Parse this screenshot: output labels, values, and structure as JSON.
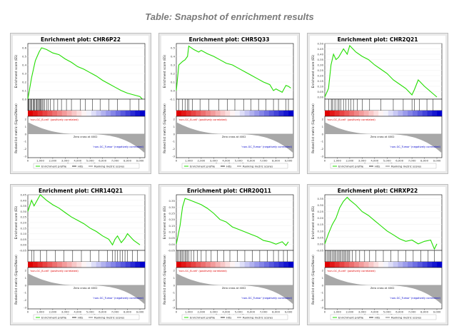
{
  "page_title": "Table: Snapshot of enrichment results",
  "colors": {
    "es_line": "#22dd00",
    "hit": "#000000",
    "metric": "#a8a8a8",
    "pos": "#e00000",
    "neg": "#0000cc",
    "frame": "#bdbdbd"
  },
  "shared": {
    "xlabel": "Rank in Ordered Dataset",
    "ylabel_es": "Enrichment score (ES)",
    "ylabel_metric": "Ranked list metric (Signal2Noise)",
    "x_ticks": [
      "0",
      "1,000",
      "2,000",
      "3,000",
      "4,000",
      "5,000",
      "6,000",
      "7,000",
      "8,000",
      "9,000"
    ],
    "metric_ticks": [
      "2",
      "1",
      "0",
      "-1",
      "-2",
      "-3"
    ],
    "pos_label": "'non-GC_B-cell' (positively correlated)",
    "neg_label": "'non-GC_Tumor' (negatively correlated)",
    "zero_cross": "Zero cross at 4002",
    "legend": [
      "Enrichment profile",
      "Hits",
      "Ranking metric scores"
    ]
  },
  "chart_data": [
    {
      "type": "line",
      "title": "Enrichment plot: CHR6P22",
      "xlim": [
        0,
        9400
      ],
      "ylim": [
        0,
        0.65
      ],
      "y_ticks": [
        "0.6",
        "0.5",
        "0.4",
        "0.3",
        "0.2",
        "0.1",
        "0.0"
      ],
      "y_tick_values": [
        0.6,
        0.5,
        0.4,
        0.3,
        0.2,
        0.1,
        0.0
      ],
      "x": [
        0,
        300,
        600,
        900,
        1100,
        1500,
        2000,
        2500,
        3000,
        3500,
        4000,
        4500,
        5000,
        5500,
        6000,
        6500,
        7000,
        7500,
        8000,
        8500,
        9000,
        9200
      ],
      "es": [
        0,
        0.25,
        0.45,
        0.55,
        0.6,
        0.58,
        0.54,
        0.52,
        0.47,
        0.43,
        0.38,
        0.35,
        0.31,
        0.27,
        0.22,
        0.18,
        0.14,
        0.1,
        0.07,
        0.05,
        0.03,
        0.0
      ],
      "hits": [
        50,
        100,
        180,
        260,
        330,
        420,
        500,
        560,
        650,
        720,
        800,
        860,
        940,
        1000,
        1080,
        1150,
        1250,
        1350,
        1500,
        1650,
        1800,
        2100,
        2400,
        2700,
        3100,
        3500,
        4200,
        4600,
        5200,
        5800,
        6500,
        7200,
        8200,
        8900
      ]
    },
    {
      "type": "line",
      "title": "Enrichment plot: CHR5Q33",
      "xlim": [
        0,
        9400
      ],
      "ylim": [
        -0.1,
        0.55
      ],
      "y_ticks": [
        "0.5",
        "0.4",
        "0.3",
        "0.2",
        "0.1",
        "0.0",
        "-0.1"
      ],
      "y_tick_values": [
        0.5,
        0.4,
        0.3,
        0.2,
        0.1,
        0.0,
        -0.1
      ],
      "x": [
        0,
        200,
        500,
        700,
        900,
        1000,
        1400,
        1800,
        2000,
        2500,
        3000,
        3500,
        4000,
        4500,
        5000,
        5500,
        6000,
        6500,
        7000,
        7500,
        7800,
        8000,
        8500,
        8800,
        9000,
        9200
      ],
      "es": [
        0,
        0.3,
        0.34,
        0.36,
        0.4,
        0.52,
        0.48,
        0.45,
        0.47,
        0.43,
        0.4,
        0.36,
        0.32,
        0.3,
        0.26,
        0.22,
        0.18,
        0.14,
        0.1,
        0.07,
        0.0,
        0.02,
        -0.02,
        0.06,
        0.05,
        0.03
      ],
      "hits": [
        200,
        500,
        700,
        900,
        1000,
        1300,
        1900,
        2600,
        3400,
        4100,
        4700,
        5400,
        6000,
        6600,
        7200,
        7800,
        8200,
        8800,
        9000
      ]
    },
    {
      "type": "line",
      "title": "Enrichment plot: CHR2Q21",
      "xlim": [
        0,
        9400
      ],
      "ylim": [
        -0.02,
        0.5
      ],
      "y_ticks": [
        "0.50",
        "0.45",
        "0.40",
        "0.35",
        "0.30",
        "0.25",
        "0.20",
        "0.15",
        "0.10",
        "0.05",
        "0.00"
      ],
      "y_tick_values": [
        0.5,
        0.45,
        0.4,
        0.35,
        0.3,
        0.25,
        0.2,
        0.15,
        0.1,
        0.05,
        0.0
      ],
      "x": [
        0,
        300,
        500,
        700,
        900,
        1100,
        1500,
        1800,
        2000,
        2500,
        3000,
        3500,
        4000,
        4500,
        5000,
        5500,
        6000,
        6500,
        7000,
        7200,
        7500,
        8000,
        8500,
        9000
      ],
      "es": [
        0,
        0.08,
        0.3,
        0.4,
        0.35,
        0.37,
        0.45,
        0.4,
        0.48,
        0.42,
        0.38,
        0.35,
        0.3,
        0.26,
        0.22,
        0.16,
        0.12,
        0.08,
        0.02,
        0.07,
        0.16,
        0.1,
        0.05,
        0.0
      ],
      "hits": [
        300,
        520,
        600,
        750,
        900,
        1050,
        1150,
        1300,
        1500,
        1700,
        1900,
        2100,
        2300,
        2600,
        3000,
        3600,
        4500,
        5500,
        6300,
        7000,
        7200,
        7600,
        8200,
        8700
      ]
    },
    {
      "type": "line",
      "title": "Enrichment plot: CHR14Q21",
      "xlim": [
        0,
        9400
      ],
      "ylim": [
        -0.05,
        0.45
      ],
      "y_ticks": [
        "0.45",
        "0.40",
        "0.35",
        "0.30",
        "0.25",
        "0.20",
        "0.15",
        "0.10",
        "0.05",
        "0.00",
        "-0.05"
      ],
      "y_tick_values": [
        0.45,
        0.4,
        0.35,
        0.3,
        0.25,
        0.2,
        0.15,
        0.1,
        0.05,
        0.0,
        -0.05
      ],
      "x": [
        0,
        300,
        500,
        1000,
        1500,
        2000,
        2500,
        3000,
        3500,
        4000,
        4500,
        5000,
        5500,
        6000,
        6500,
        6800,
        7000,
        7200,
        7500,
        7800,
        8000,
        8500,
        9000
      ],
      "es": [
        0.3,
        0.4,
        0.35,
        0.45,
        0.4,
        0.36,
        0.33,
        0.29,
        0.25,
        0.22,
        0.19,
        0.15,
        0.12,
        0.08,
        0.05,
        0.0,
        0.05,
        0.08,
        0.02,
        0.06,
        0.1,
        0.04,
        0.0
      ],
      "hits": [
        300,
        500,
        1000,
        1500,
        2200,
        2900,
        3600,
        4300,
        5000,
        5700,
        6400,
        6800,
        7000,
        7200,
        7400,
        7600,
        7800,
        8000,
        8400,
        8800
      ]
    },
    {
      "type": "line",
      "title": "Enrichment plot: CHR20Q11",
      "xlim": [
        0,
        9400
      ],
      "ylim": [
        -0.05,
        0.4
      ],
      "y_ticks": [
        "0.35",
        "0.30",
        "0.25",
        "0.20",
        "0.15",
        "0.10",
        "0.05",
        "0.00",
        "-0.05"
      ],
      "y_tick_values": [
        0.35,
        0.3,
        0.25,
        0.2,
        0.15,
        0.1,
        0.05,
        0.0,
        -0.05
      ],
      "x": [
        0,
        300,
        500,
        700,
        1000,
        1500,
        2000,
        2500,
        3000,
        3500,
        4000,
        4500,
        5000,
        5500,
        6000,
        6500,
        7000,
        7500,
        8000,
        8500,
        8800,
        9000
      ],
      "es": [
        0,
        0.15,
        0.3,
        0.37,
        0.36,
        0.34,
        0.32,
        0.29,
        0.25,
        0.2,
        0.18,
        0.14,
        0.12,
        0.1,
        0.08,
        0.06,
        0.03,
        0.02,
        0.0,
        0.02,
        -0.01,
        0.02
      ],
      "hits": [
        100,
        200,
        300,
        400,
        500,
        600,
        700,
        800,
        900,
        1000,
        1200,
        1400,
        1700,
        2000,
        2400,
        2800,
        3300,
        3800,
        4300,
        4900,
        5500,
        6100,
        6700,
        7300,
        7800,
        8200,
        8600,
        8900
      ]
    },
    {
      "type": "line",
      "title": "Enrichment plot: CHRXP22",
      "xlim": [
        0,
        9400
      ],
      "ylim": [
        -0.05,
        0.38
      ],
      "y_ticks": [
        "0.35",
        "0.30",
        "0.25",
        "0.20",
        "0.15",
        "0.10",
        "0.05",
        "0.00",
        "-0.05"
      ],
      "y_tick_values": [
        0.35,
        0.3,
        0.25,
        0.2,
        0.15,
        0.1,
        0.05,
        0.0,
        -0.05
      ],
      "x": [
        0,
        300,
        600,
        900,
        1200,
        1500,
        1800,
        2000,
        2500,
        3000,
        3500,
        4000,
        4500,
        5000,
        5500,
        6000,
        6500,
        7000,
        7500,
        8000,
        8500,
        8800,
        9000
      ],
      "es": [
        0,
        0.08,
        0.15,
        0.2,
        0.28,
        0.33,
        0.36,
        0.34,
        0.3,
        0.25,
        0.22,
        0.18,
        0.14,
        0.1,
        0.07,
        0.04,
        0.02,
        0.03,
        0.0,
        0.02,
        0.03,
        -0.04,
        0.0
      ],
      "hits": [
        100,
        200,
        300,
        400,
        500,
        600,
        700,
        800,
        900,
        1000,
        1100,
        1200,
        1300,
        1400,
        1500,
        1600,
        1700,
        1800,
        1900,
        2000,
        2200,
        2500,
        2800,
        3200,
        3600,
        4100,
        4700,
        5300,
        5900,
        6500,
        7100,
        7700,
        8300,
        8800
      ]
    }
  ]
}
